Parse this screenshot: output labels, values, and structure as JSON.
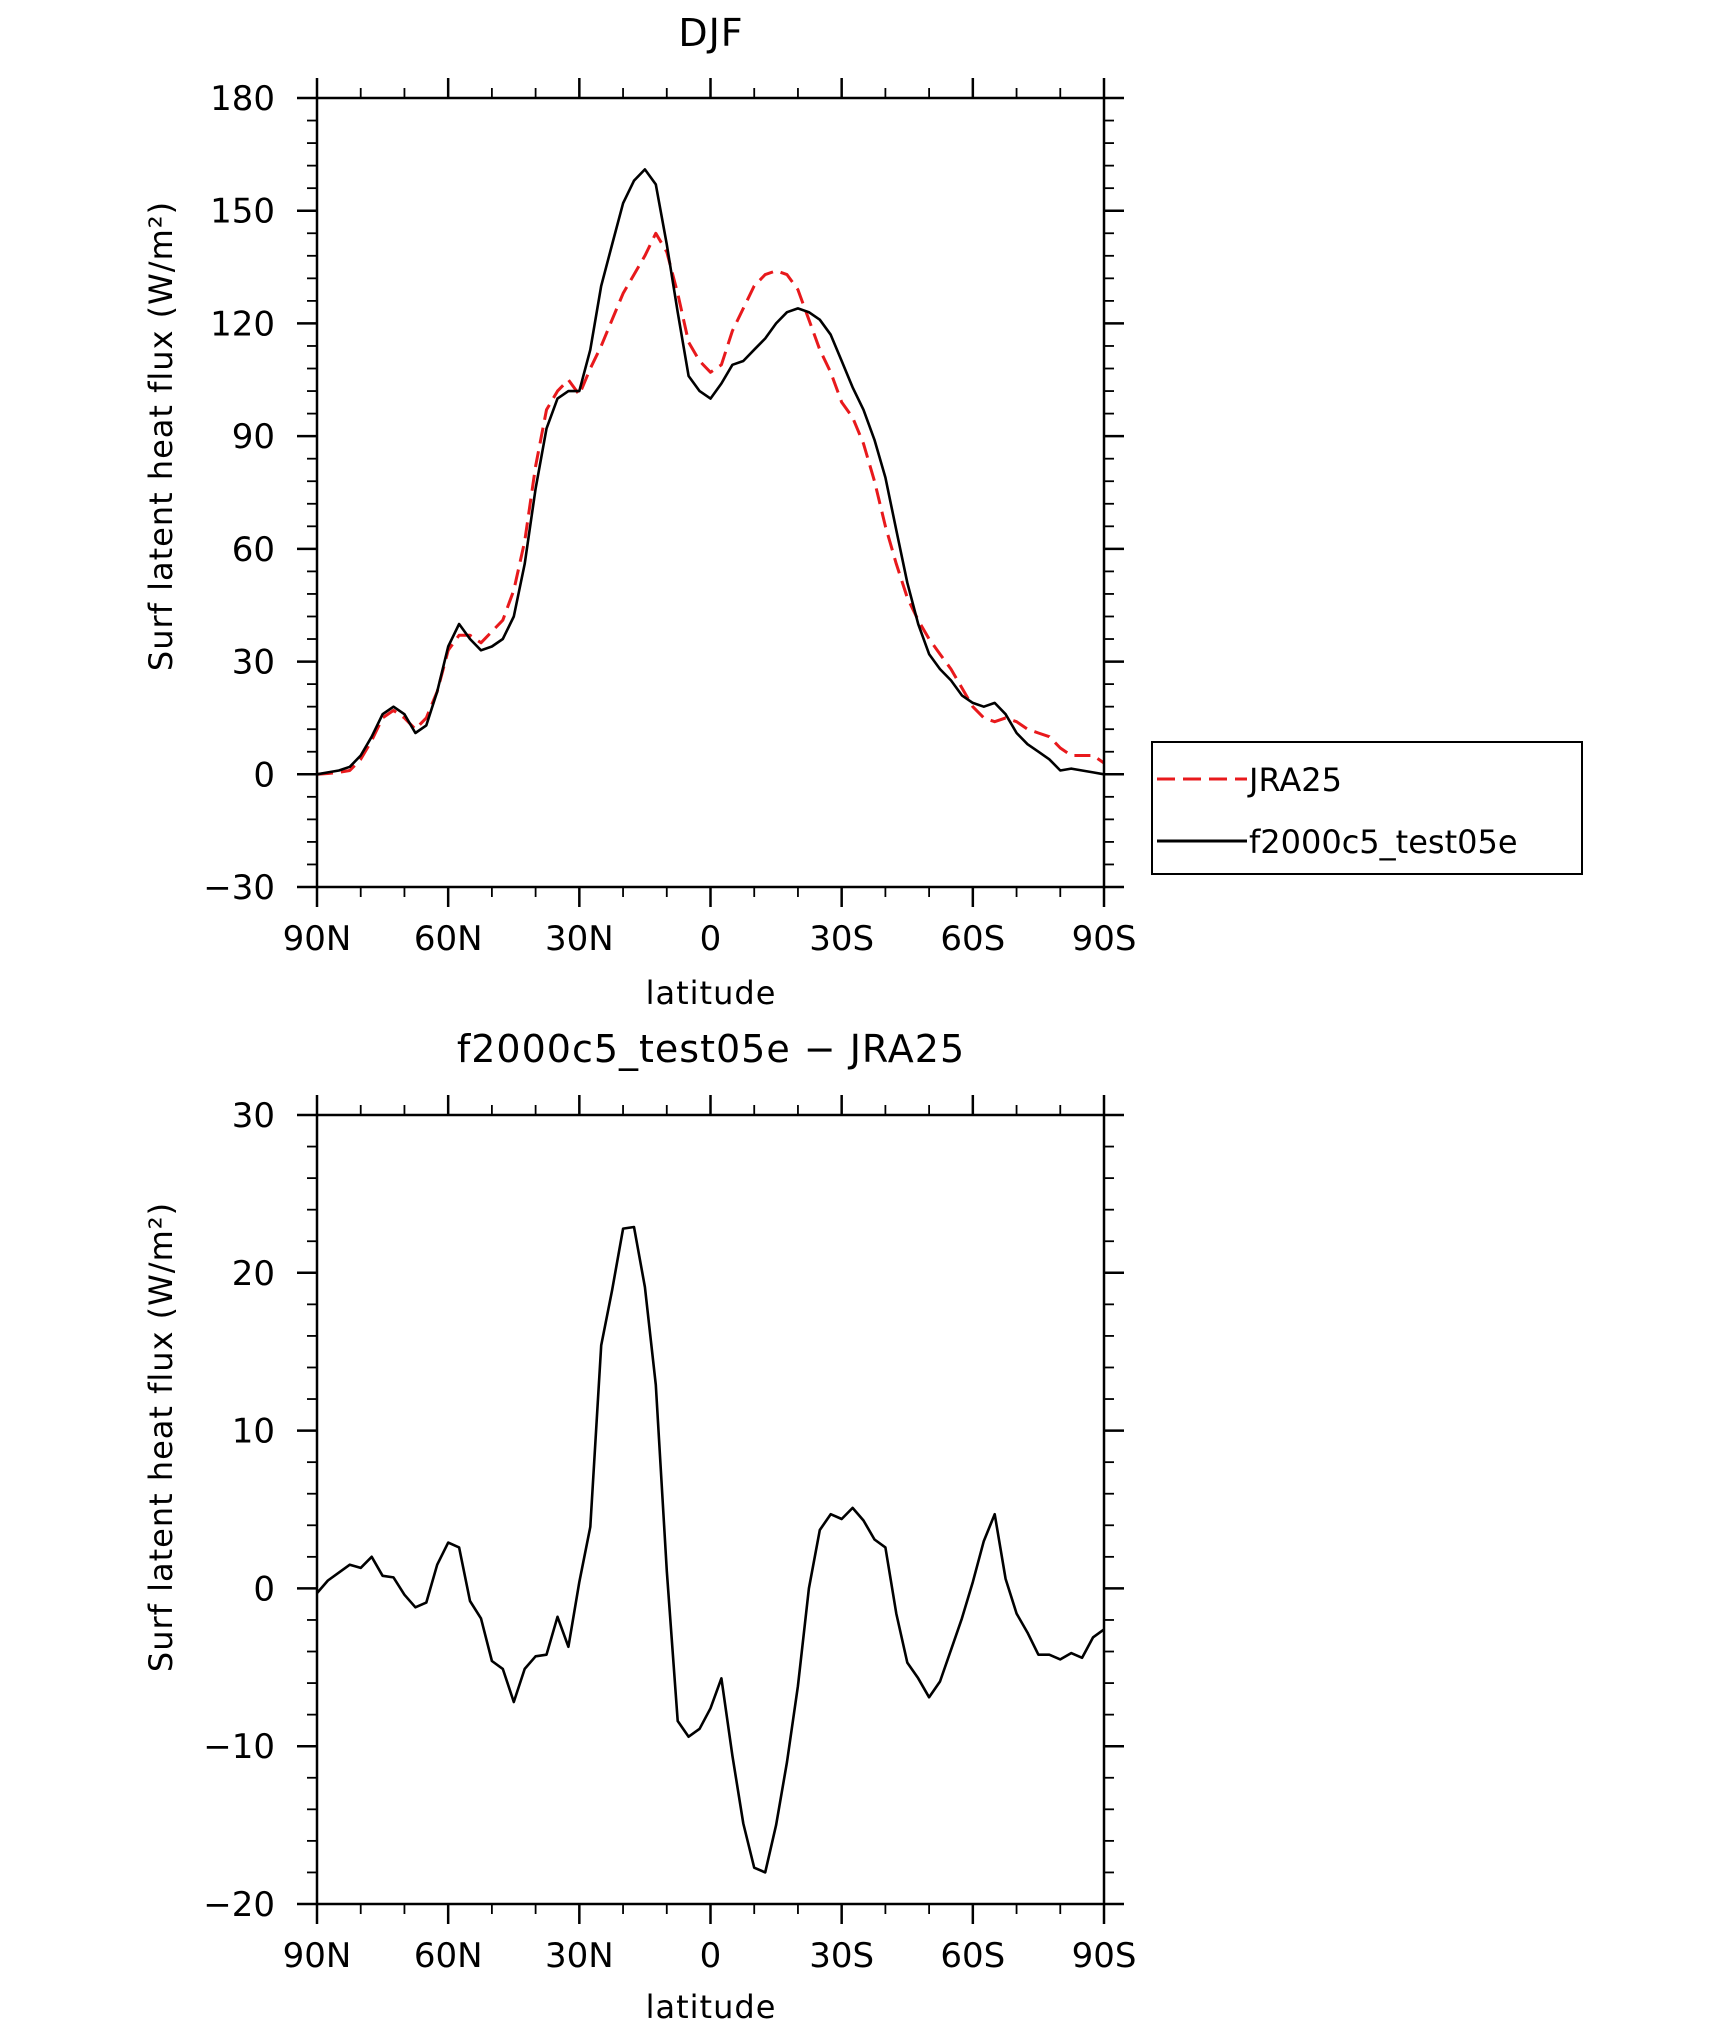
{
  "chart_data": [
    {
      "type": "line",
      "title": "DJF",
      "xlabel": "latitude",
      "ylabel": "Surf latent heat flux (W/m²)",
      "xlim": [
        90,
        -90
      ],
      "ylim": [
        -30,
        180
      ],
      "yticks": [
        "180",
        "150",
        "120",
        "90",
        "60",
        "30",
        "0",
        "−30"
      ],
      "xticks": [
        "90N",
        "60N",
        "30N",
        "0",
        "30S",
        "60S",
        "90S"
      ],
      "legend_position": "right",
      "series": [
        {
          "name": "JRA25",
          "color": "#e8191c",
          "dash": "dashed",
          "x": [
            90,
            87.5,
            85,
            82.5,
            80,
            77.5,
            75,
            72.5,
            70,
            67.5,
            65,
            62.5,
            60,
            57.5,
            55,
            52.5,
            50,
            47.5,
            45,
            42.5,
            40,
            37.5,
            35,
            32.5,
            30,
            27.5,
            25,
            22.5,
            20,
            17.5,
            15,
            12.5,
            10,
            7.5,
            5,
            2.5,
            0,
            -2.5,
            -5,
            -7.5,
            -10,
            -12.5,
            -15,
            -17.5,
            -20,
            -22.5,
            -25,
            -27.5,
            -30,
            -32.5,
            -35,
            -37.5,
            -40,
            -42.5,
            -45,
            -47.5,
            -50,
            -52.5,
            -55,
            -57.5,
            -60,
            -62.5,
            -65,
            -67.5,
            -70,
            -72.5,
            -75,
            -77.5,
            -80,
            -82.5,
            -85,
            -87.5,
            -90
          ],
          "y": [
            0,
            0.2,
            0.5,
            1,
            4,
            9,
            15,
            17,
            15,
            12,
            15,
            22,
            33,
            37,
            37,
            35,
            38,
            41,
            49,
            62,
            82,
            97,
            102,
            105,
            101,
            108,
            114,
            121,
            128,
            133,
            138,
            144,
            139,
            128,
            115,
            110,
            107,
            109,
            118,
            124,
            130,
            133,
            134,
            133,
            129,
            121,
            113,
            107,
            99,
            95,
            88,
            78,
            66,
            56,
            47,
            41,
            36,
            32,
            28,
            23,
            18,
            15,
            14,
            15,
            14,
            12,
            11,
            10,
            7,
            5,
            5,
            5,
            3
          ]
        },
        {
          "name": "f2000c5_test05e",
          "color": "#000000",
          "dash": "solid",
          "x": [
            90,
            87.5,
            85,
            82.5,
            80,
            77.5,
            75,
            72.5,
            70,
            67.5,
            65,
            62.5,
            60,
            57.5,
            55,
            52.5,
            50,
            47.5,
            45,
            42.5,
            40,
            37.5,
            35,
            32.5,
            30,
            27.5,
            25,
            22.5,
            20,
            17.5,
            15,
            12.5,
            10,
            7.5,
            5,
            2.5,
            0,
            -2.5,
            -5,
            -7.5,
            -10,
            -12.5,
            -15,
            -17.5,
            -20,
            -22.5,
            -25,
            -27.5,
            -30,
            -32.5,
            -35,
            -37.5,
            -40,
            -42.5,
            -45,
            -47.5,
            -50,
            -52.5,
            -55,
            -57.5,
            -60,
            -62.5,
            -65,
            -67.5,
            -70,
            -72.5,
            -75,
            -77.5,
            -80,
            -82.5,
            -85,
            -87.5,
            -90
          ],
          "y": [
            0,
            0.5,
            1,
            2,
            5,
            10,
            16,
            18,
            16,
            11,
            13,
            22,
            34,
            40,
            36,
            33,
            34,
            36,
            42,
            56,
            76,
            92,
            100,
            102,
            102,
            113,
            130,
            141,
            152,
            158,
            161,
            157,
            141,
            123,
            106,
            102,
            100,
            104,
            109,
            110,
            113,
            116,
            120,
            123,
            124,
            123,
            121,
            117,
            110,
            103,
            97,
            89,
            79,
            65,
            51,
            40,
            32,
            28,
            25,
            21,
            19,
            18,
            19,
            16,
            11,
            8,
            6,
            4,
            1,
            1.5,
            1,
            0.5,
            0
          ]
        }
      ]
    },
    {
      "type": "line",
      "title": "f2000c5_test05e − JRA25",
      "xlabel": "latitude",
      "ylabel": "Surf latent heat flux (W/m²)",
      "xlim": [
        90,
        -90
      ],
      "ylim": [
        -20,
        30
      ],
      "yticks": [
        "30",
        "20",
        "10",
        "0",
        "−10",
        "−20"
      ],
      "xticks": [
        "90N",
        "60N",
        "30N",
        "0",
        "30S",
        "60S",
        "90S"
      ],
      "series": [
        {
          "color": "#000000",
          "dash": "solid",
          "x": [
            90,
            87.5,
            85,
            82.5,
            80,
            77.5,
            75,
            72.5,
            70,
            67.5,
            65,
            62.5,
            60,
            57.5,
            55,
            52.5,
            50,
            47.5,
            45,
            42.5,
            40,
            37.5,
            35,
            32.5,
            30,
            27.5,
            25,
            22.5,
            20,
            17.5,
            15,
            12.5,
            10,
            7.5,
            5,
            2.5,
            0,
            -2.5,
            -5,
            -7.5,
            -10,
            -12.5,
            -15,
            -17.5,
            -20,
            -22.5,
            -25,
            -27.5,
            -30,
            -32.5,
            -35,
            -37.5,
            -40,
            -42.5,
            -45,
            -47.5,
            -50,
            -52.5,
            -55,
            -57.5,
            -60,
            -62.5,
            -65,
            -67.5,
            -70,
            -72.5,
            -75,
            -77.5,
            -80,
            -82.5,
            -85,
            -87.5,
            -90
          ],
          "y": [
            -0.3,
            0.5,
            1,
            1.5,
            1.3,
            2,
            0.8,
            0.7,
            -0.4,
            -1.2,
            -0.9,
            1.5,
            2.9,
            2.6,
            -0.8,
            -1.9,
            -4.6,
            -5.1,
            -7.2,
            -5.1,
            -4.3,
            -4.2,
            -1.8,
            -3.7,
            0.4,
            3.9,
            15.4,
            18.9,
            22.8,
            22.9,
            19.1,
            12.9,
            1.1,
            -8.4,
            -9.4,
            -8.9,
            -7.6,
            -5.7,
            -10.6,
            -14.9,
            -17.7,
            -18,
            -15,
            -11,
            -6.2,
            0,
            3.7,
            4.7,
            4.4,
            5.1,
            4.3,
            3.1,
            2.6,
            -1.6,
            -4.7,
            -5.7,
            -6.9,
            -5.9,
            -3.9,
            -1.9,
            0.4,
            3,
            4.7,
            0.6,
            -1.6,
            -2.8,
            -4.2,
            -4.2,
            -4.5,
            -4.1,
            -4.4,
            -3.1,
            -2.6
          ]
        }
      ]
    }
  ]
}
